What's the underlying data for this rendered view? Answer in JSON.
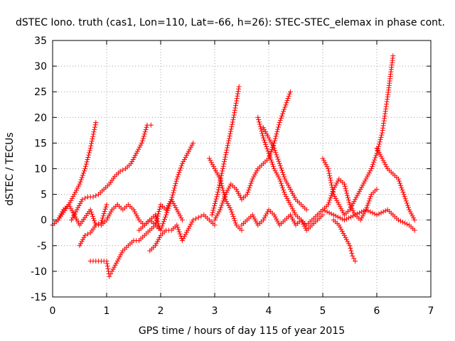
{
  "chart_data": {
    "type": "scatter",
    "title": "dSTEC Iono. truth (cas1, Lon=110, Lat=-66, h=26): STEC-STEC_elemax in phase cont.",
    "xlabel": "GPS time / hours of day 115 of year 2015",
    "ylabel": "dSTEC  / TECUs",
    "xlim": [
      0,
      7
    ],
    "ylim": [
      -15,
      35
    ],
    "xticks": [
      "0",
      "1",
      "2",
      "3",
      "4",
      "5",
      "6",
      "7"
    ],
    "yticks": [
      "-15",
      "-10",
      "-5",
      "0",
      "5",
      "10",
      "15",
      "20",
      "25",
      "30",
      "35"
    ],
    "grid": true,
    "marker": "+",
    "color": "#ff0000",
    "series": [
      {
        "x": [
          0.0,
          0.1,
          0.2,
          0.3,
          0.4,
          0.5,
          0.6,
          0.7,
          0.8
        ],
        "y": [
          -1,
          0,
          1.5,
          3,
          5,
          7,
          10,
          14,
          19
        ]
      },
      {
        "x": [
          0.35,
          0.45,
          0.55,
          0.65,
          0.75,
          0.85,
          0.95,
          1.05,
          1.15,
          1.25,
          1.35,
          1.45,
          1.55,
          1.65,
          1.75,
          1.82
        ],
        "y": [
          0,
          2,
          4,
          4.5,
          4.5,
          5,
          6,
          7,
          8.5,
          9.5,
          10,
          11,
          13,
          15,
          18.5,
          18.5
        ]
      },
      {
        "x": [
          0.0,
          0.1,
          0.2,
          0.3,
          0.4,
          0.5,
          0.6,
          0.7,
          0.8,
          0.9,
          1.0
        ],
        "y": [
          -1,
          0,
          2,
          3,
          1,
          -1,
          0.5,
          2,
          -1,
          -0.5,
          3
        ]
      },
      {
        "x": [
          0.5,
          0.6,
          0.7,
          0.8,
          0.9,
          1.0,
          1.1,
          1.2
        ],
        "y": [
          -5,
          -3,
          -2.5,
          -1,
          -1,
          0,
          2,
          3
        ]
      },
      {
        "x": [
          0.7,
          0.8,
          0.9,
          1.0,
          1.05,
          1.1,
          1.2,
          1.3,
          1.4,
          1.5,
          1.6,
          1.7,
          1.8,
          1.9,
          2.0
        ],
        "y": [
          -8,
          -8,
          -8,
          -8,
          -11,
          -10,
          -8,
          -6,
          -5,
          -4,
          -4,
          -3,
          -2,
          -1,
          -2
        ]
      },
      {
        "x": [
          1.6,
          1.7,
          1.8,
          1.9,
          2.0,
          2.1,
          2.2,
          2.3,
          2.4,
          2.5,
          2.6
        ],
        "y": [
          -2,
          -1,
          0,
          1,
          -2,
          1,
          4,
          8,
          11,
          13,
          15
        ]
      },
      {
        "x": [
          1.2,
          1.3,
          1.4,
          1.5,
          1.6,
          1.7,
          1.8,
          1.9,
          2.0,
          2.1,
          2.2,
          2.3,
          2.4
        ],
        "y": [
          3,
          2,
          3,
          2,
          0,
          -1,
          0,
          -1,
          3,
          2,
          4,
          2,
          0
        ]
      },
      {
        "x": [
          1.8,
          1.9,
          2.0,
          2.1,
          2.2,
          2.3,
          2.4,
          2.5,
          2.6,
          2.7,
          2.8,
          2.9,
          3.0
        ],
        "y": [
          -6,
          -5,
          -3,
          -2,
          -2,
          -1,
          -4,
          -2,
          0,
          0.5,
          1,
          0,
          -1
        ]
      },
      {
        "x": [
          2.9,
          3.0,
          3.1,
          3.2,
          3.3,
          3.4,
          3.5
        ],
        "y": [
          12,
          10,
          8,
          4,
          2,
          -1,
          -2
        ]
      },
      {
        "x": [
          2.95,
          3.05,
          3.15,
          3.25,
          3.35,
          3.45
        ],
        "y": [
          1,
          5,
          10,
          15,
          20,
          26
        ]
      },
      {
        "x": [
          3.0,
          3.1,
          3.2,
          3.3,
          3.4,
          3.5,
          3.6,
          3.7,
          3.8,
          3.9,
          4.0,
          4.1,
          4.2,
          4.3,
          4.4
        ],
        "y": [
          0,
          2,
          5,
          7,
          6,
          4,
          5,
          8,
          10,
          11,
          12,
          15,
          19,
          22,
          25
        ]
      },
      {
        "x": [
          3.8,
          3.9,
          4.0,
          4.1,
          4.2,
          4.3,
          4.4,
          4.5,
          4.6,
          4.7,
          4.8,
          4.9,
          5.0
        ],
        "y": [
          20,
          16,
          13,
          10,
          8,
          5,
          3,
          1,
          0,
          -1,
          0,
          1,
          2
        ]
      },
      {
        "x": [
          3.9,
          4.0,
          4.1,
          4.2,
          4.3,
          4.4,
          4.5,
          4.6,
          4.7
        ],
        "y": [
          18,
          16,
          14,
          11,
          8,
          6,
          4,
          3,
          2
        ]
      },
      {
        "x": [
          3.5,
          3.6,
          3.7,
          3.8,
          3.9,
          4.0,
          4.1,
          4.2,
          4.3,
          4.4,
          4.5,
          4.6,
          4.7,
          4.8,
          4.9,
          5.0
        ],
        "y": [
          -1,
          0,
          1,
          -1,
          0,
          2,
          1,
          -1,
          0,
          1,
          -1,
          0,
          -2,
          -1,
          0,
          1
        ]
      },
      {
        "x": [
          5.0,
          5.1,
          5.2,
          5.3,
          5.4,
          5.5,
          5.6,
          5.7,
          5.8,
          5.9,
          6.0,
          6.1,
          6.2,
          6.3
        ],
        "y": [
          12,
          10,
          5,
          3,
          1,
          2,
          4,
          6,
          8,
          10,
          13,
          17,
          24,
          32
        ]
      },
      {
        "x": [
          5.0,
          5.1,
          5.2,
          5.3,
          5.4,
          5.5,
          5.6,
          5.7,
          5.8,
          5.9,
          6.0
        ],
        "y": [
          2,
          3,
          6,
          8,
          7,
          3,
          1,
          0,
          2,
          5,
          6
        ]
      },
      {
        "x": [
          5.2,
          5.3,
          5.4,
          5.5,
          5.55,
          5.6
        ],
        "y": [
          0,
          -1,
          -3,
          -5,
          -7,
          -8
        ]
      },
      {
        "x": [
          6.0,
          6.1,
          6.2,
          6.3,
          6.4,
          6.5,
          6.6,
          6.7
        ],
        "y": [
          14,
          12,
          10,
          9,
          8,
          5,
          2,
          0
        ]
      },
      {
        "x": [
          5.0,
          5.2,
          5.4,
          5.6,
          5.8,
          6.0,
          6.2,
          6.4,
          6.6,
          6.7
        ],
        "y": [
          2,
          1,
          0,
          1,
          2,
          1,
          2,
          0,
          -1,
          -2
        ]
      }
    ]
  }
}
